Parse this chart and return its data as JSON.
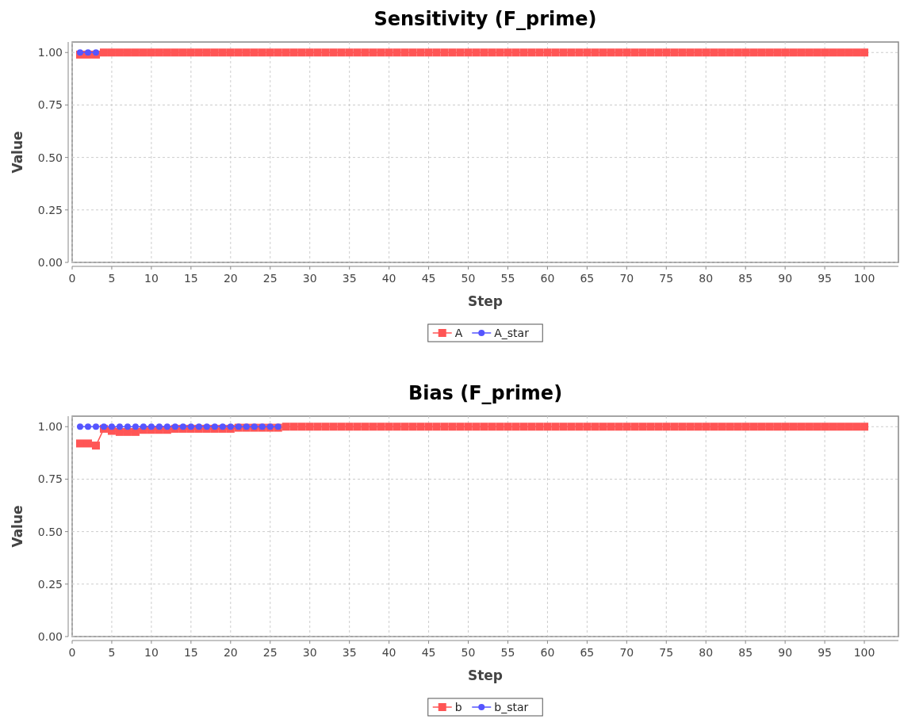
{
  "chart_data": [
    {
      "type": "line",
      "title": "Sensitivity (F_prime)",
      "xlabel": "Step",
      "ylabel": "Value",
      "x": [
        1,
        2,
        3,
        4,
        5,
        6,
        7,
        8,
        9,
        10,
        11,
        12,
        13,
        14,
        15,
        16,
        17,
        18,
        19,
        20,
        21,
        22,
        23,
        24,
        25,
        26,
        27,
        28,
        29,
        30,
        31,
        32,
        33,
        34,
        35,
        36,
        37,
        38,
        39,
        40,
        41,
        42,
        43,
        44,
        45,
        46,
        47,
        48,
        49,
        50,
        51,
        52,
        53,
        54,
        55,
        56,
        57,
        58,
        59,
        60,
        61,
        62,
        63,
        64,
        65,
        66,
        67,
        68,
        69,
        70,
        71,
        72,
        73,
        74,
        75,
        76,
        77,
        78,
        79,
        80,
        81,
        82,
        83,
        84,
        85,
        86,
        87,
        88,
        89,
        90,
        91,
        92,
        93,
        94,
        95,
        96,
        97,
        98,
        99,
        100
      ],
      "xlim": [
        0,
        104.3
      ],
      "xticks": [
        0,
        5,
        10,
        15,
        20,
        25,
        30,
        35,
        40,
        45,
        50,
        55,
        60,
        65,
        70,
        75,
        80,
        85,
        90,
        95,
        100
      ],
      "ylim": [
        0,
        1.05
      ],
      "yticks": [
        {
          "value": 0,
          "label": "0.00"
        },
        {
          "value": 0.25,
          "label": "0.25"
        },
        {
          "value": 0.5,
          "label": "0.50"
        },
        {
          "value": 0.75,
          "label": "0.75"
        },
        {
          "value": 1,
          "label": "1.00"
        }
      ],
      "grid": true,
      "legend": "bottom",
      "series": [
        {
          "name": "A",
          "color": "#ff5555",
          "marker": "square",
          "values": [
            0.99,
            0.99,
            0.99,
            1,
            1,
            1,
            1,
            1,
            1,
            1,
            1,
            1,
            1,
            1,
            1,
            1,
            1,
            1,
            1,
            1,
            1,
            1,
            1,
            1,
            1,
            1,
            1,
            1,
            1,
            1,
            1,
            1,
            1,
            1,
            1,
            1,
            1,
            1,
            1,
            1,
            1,
            1,
            1,
            1,
            1,
            1,
            1,
            1,
            1,
            1,
            1,
            1,
            1,
            1,
            1,
            1,
            1,
            1,
            1,
            1,
            1,
            1,
            1,
            1,
            1,
            1,
            1,
            1,
            1,
            1,
            1,
            1,
            1,
            1,
            1,
            1,
            1,
            1,
            1,
            1,
            1,
            1,
            1,
            1,
            1,
            1,
            1,
            1,
            1,
            1,
            1,
            1,
            1,
            1,
            1,
            1,
            1,
            1,
            1,
            1
          ]
        },
        {
          "name": "A_star",
          "color": "#5555ff",
          "marker": "circle",
          "values": [
            1,
            1,
            1,
            null,
            null,
            null,
            null,
            null,
            null,
            null,
            null,
            null,
            null,
            null,
            null,
            null,
            null,
            null,
            null,
            null,
            null,
            null,
            null,
            null,
            null,
            null,
            null,
            null,
            null,
            null,
            null,
            null,
            null,
            null,
            null,
            null,
            null,
            null,
            null,
            null,
            null,
            null,
            null,
            null,
            null,
            null,
            null,
            null,
            null,
            null,
            null,
            null,
            null,
            null,
            null,
            null,
            null,
            null,
            null,
            null,
            null,
            null,
            null,
            null,
            null,
            null,
            null,
            null,
            null,
            null,
            null,
            null,
            null,
            null,
            null,
            null,
            null,
            null,
            null,
            null,
            null,
            null,
            null,
            null,
            null,
            null,
            null,
            null,
            null,
            null,
            null,
            null,
            null,
            null,
            null,
            null,
            null,
            null,
            null,
            null
          ]
        }
      ]
    },
    {
      "type": "line",
      "title": "Bias (F_prime)",
      "xlabel": "Step",
      "ylabel": "Value",
      "x": [
        1,
        2,
        3,
        4,
        5,
        6,
        7,
        8,
        9,
        10,
        11,
        12,
        13,
        14,
        15,
        16,
        17,
        18,
        19,
        20,
        21,
        22,
        23,
        24,
        25,
        26,
        27,
        28,
        29,
        30,
        31,
        32,
        33,
        34,
        35,
        36,
        37,
        38,
        39,
        40,
        41,
        42,
        43,
        44,
        45,
        46,
        47,
        48,
        49,
        50,
        51,
        52,
        53,
        54,
        55,
        56,
        57,
        58,
        59,
        60,
        61,
        62,
        63,
        64,
        65,
        66,
        67,
        68,
        69,
        70,
        71,
        72,
        73,
        74,
        75,
        76,
        77,
        78,
        79,
        80,
        81,
        82,
        83,
        84,
        85,
        86,
        87,
        88,
        89,
        90,
        91,
        92,
        93,
        94,
        95,
        96,
        97,
        98,
        99,
        100
      ],
      "xlim": [
        0,
        104.3
      ],
      "xticks": [
        0,
        5,
        10,
        15,
        20,
        25,
        30,
        35,
        40,
        45,
        50,
        55,
        60,
        65,
        70,
        75,
        80,
        85,
        90,
        95,
        100
      ],
      "ylim": [
        0,
        1.05
      ],
      "yticks": [
        {
          "value": 0,
          "label": "0.00"
        },
        {
          "value": 0.25,
          "label": "0.25"
        },
        {
          "value": 0.5,
          "label": "0.50"
        },
        {
          "value": 0.75,
          "label": "0.75"
        },
        {
          "value": 1,
          "label": "1.00"
        }
      ],
      "grid": true,
      "legend": "bottom",
      "series": [
        {
          "name": "b",
          "color": "#ff5555",
          "marker": "square",
          "values": [
            0.92,
            0.92,
            0.91,
            0.99,
            0.98,
            0.975,
            0.975,
            0.975,
            0.985,
            0.985,
            0.985,
            0.985,
            0.99,
            0.99,
            0.99,
            0.99,
            0.99,
            0.99,
            0.99,
            0.99,
            0.995,
            0.995,
            0.995,
            0.995,
            0.995,
            0.995,
            1,
            1,
            1,
            1,
            1,
            1,
            1,
            1,
            1,
            1,
            1,
            1,
            1,
            1,
            1,
            1,
            1,
            1,
            1,
            1,
            1,
            1,
            1,
            1,
            1,
            1,
            1,
            1,
            1,
            1,
            1,
            1,
            1,
            1,
            1,
            1,
            1,
            1,
            1,
            1,
            1,
            1,
            1,
            1,
            1,
            1,
            1,
            1,
            1,
            1,
            1,
            1,
            1,
            1,
            1,
            1,
            1,
            1,
            1,
            1,
            1,
            1,
            1,
            1,
            1,
            1,
            1,
            1,
            1,
            1,
            1,
            1,
            1,
            1
          ]
        },
        {
          "name": "b_star",
          "color": "#5555ff",
          "marker": "circle",
          "values": [
            1,
            1,
            1,
            1,
            1,
            1,
            1,
            1,
            1,
            1,
            1,
            1,
            1,
            1,
            1,
            1,
            1,
            1,
            1,
            1,
            1,
            1,
            1,
            1,
            1,
            1,
            null,
            null,
            null,
            null,
            null,
            null,
            null,
            null,
            null,
            null,
            null,
            null,
            null,
            null,
            null,
            null,
            null,
            null,
            null,
            null,
            null,
            null,
            null,
            null,
            null,
            null,
            null,
            null,
            null,
            null,
            null,
            null,
            null,
            null,
            null,
            null,
            null,
            null,
            null,
            null,
            null,
            null,
            null,
            null,
            null,
            null,
            null,
            null,
            null,
            null,
            null,
            null,
            null,
            null,
            null,
            null,
            null,
            null,
            null,
            null,
            null,
            null,
            null,
            null,
            null,
            null,
            null,
            null,
            null,
            null,
            null,
            null,
            null,
            null
          ]
        }
      ]
    }
  ]
}
